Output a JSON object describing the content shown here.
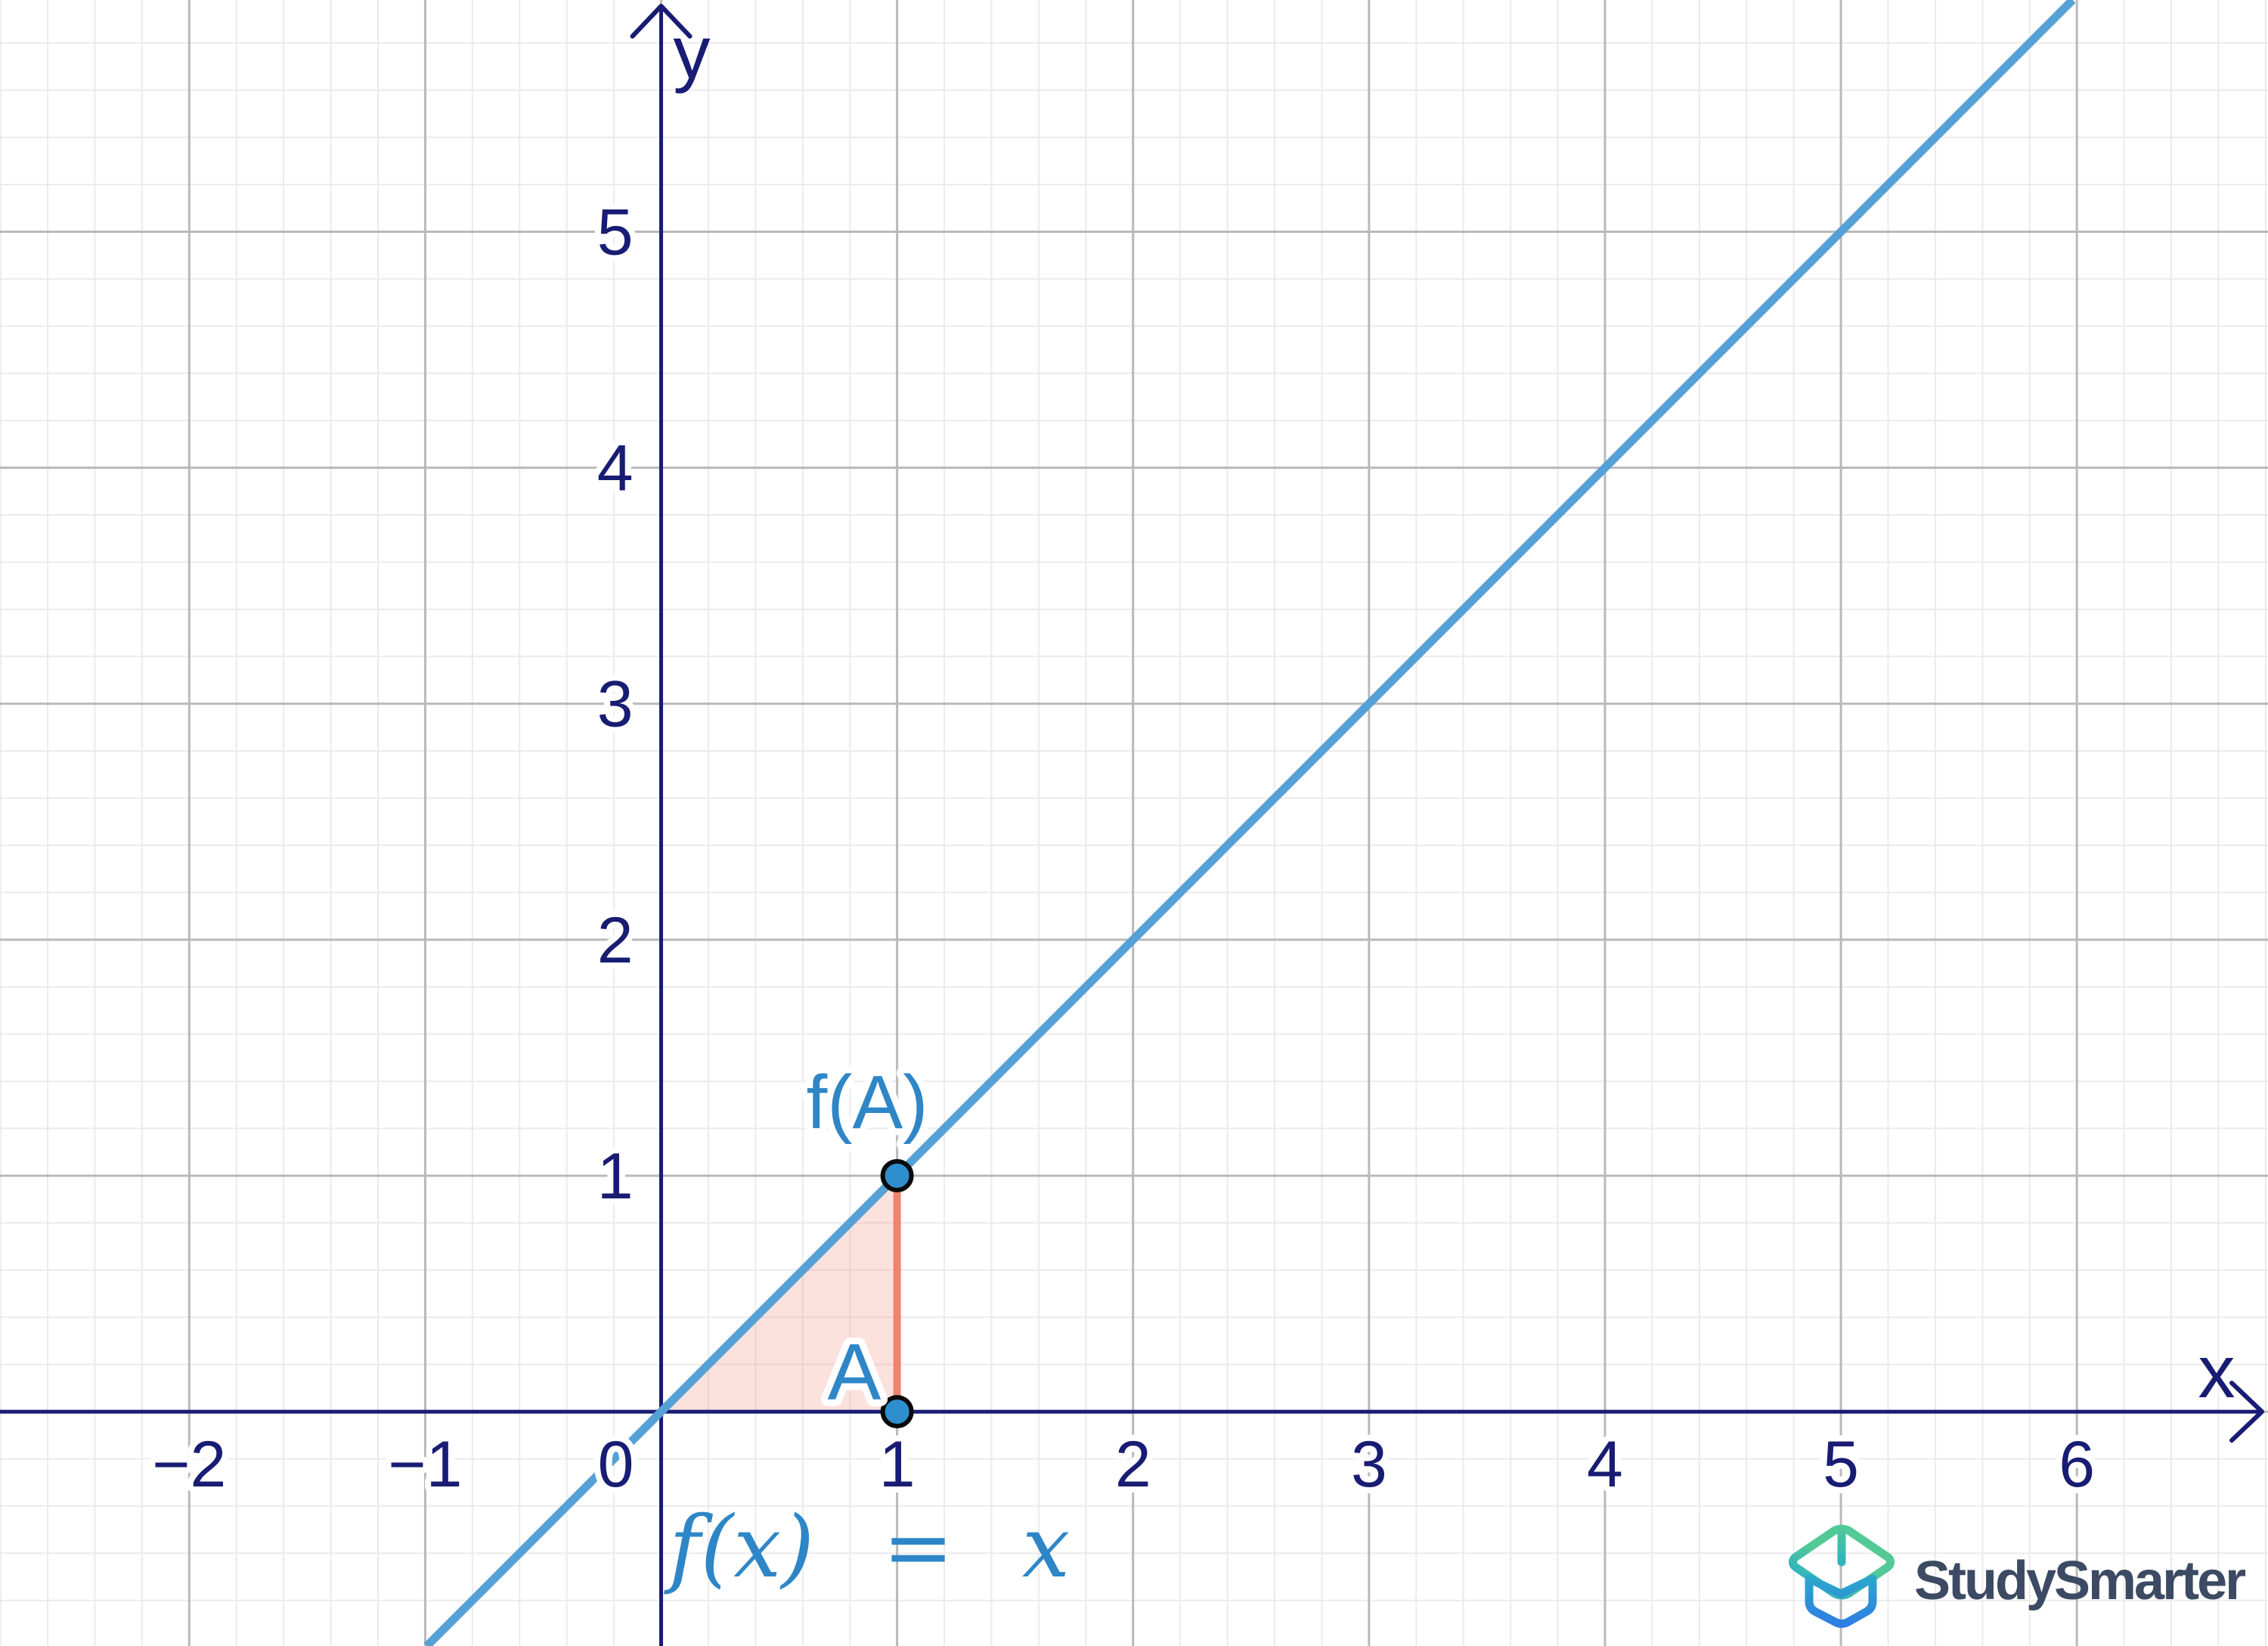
{
  "page": {
    "background": "#ffffff"
  },
  "chart_data": {
    "type": "line",
    "title": "",
    "function_label": "f(x) = x",
    "xlabel": "x",
    "ylabel": "y",
    "xlim": [
      -2.802,
      6.81
    ],
    "ylim": [
      -0.993,
      5.982
    ],
    "grid": {
      "major_step": 1,
      "minor_step": 0.2,
      "major_color": "#b9b9b9",
      "minor_color": "#ebebeb",
      "shown": true
    },
    "axis_color": "#191c73",
    "x_ticks": [
      {
        "value": -2,
        "label": "−2"
      },
      {
        "value": -1,
        "label": "−1"
      },
      {
        "value": 0,
        "label": "0",
        "dx": -60
      },
      {
        "value": 1,
        "label": "1"
      },
      {
        "value": 2,
        "label": "2"
      },
      {
        "value": 3,
        "label": "3"
      },
      {
        "value": 4,
        "label": "4"
      },
      {
        "value": 5,
        "label": "5"
      },
      {
        "value": 6,
        "label": "6"
      }
    ],
    "y_ticks": [
      {
        "value": 1,
        "label": "1"
      },
      {
        "value": 2,
        "label": "2"
      },
      {
        "value": 3,
        "label": "3"
      },
      {
        "value": 4,
        "label": "4"
      },
      {
        "value": 5,
        "label": "5"
      }
    ],
    "series": [
      {
        "name": "f(x) = x",
        "kind": "linear",
        "slope": 1,
        "intercept": 0,
        "color": "#55a1d6",
        "width": 11
      }
    ],
    "points": [
      {
        "x": 1,
        "y": 0,
        "label": "A",
        "color": "#2e8ece",
        "ring": "#0a0a0a"
      },
      {
        "x": 1,
        "y": 1,
        "label": "f(A)",
        "color": "#2e8ece",
        "ring": "#0a0a0a"
      }
    ],
    "segment": {
      "x1": 1,
      "y1": 0,
      "x2": 1,
      "y2": 1,
      "color": "#f1826e",
      "width": 10
    },
    "triangle": {
      "vertices": [
        [
          0,
          0
        ],
        [
          1,
          0
        ],
        [
          1,
          1
        ]
      ],
      "fill": "rgba(243,130,107,0.24)"
    },
    "annotation_color": "#2e86c7",
    "legend": "none"
  },
  "branding": {
    "name": "StudySmarter",
    "text_color": "#3c4a63",
    "logo_gradient": [
      "#53ca96",
      "#2baec6",
      "#2e7ce4"
    ]
  }
}
